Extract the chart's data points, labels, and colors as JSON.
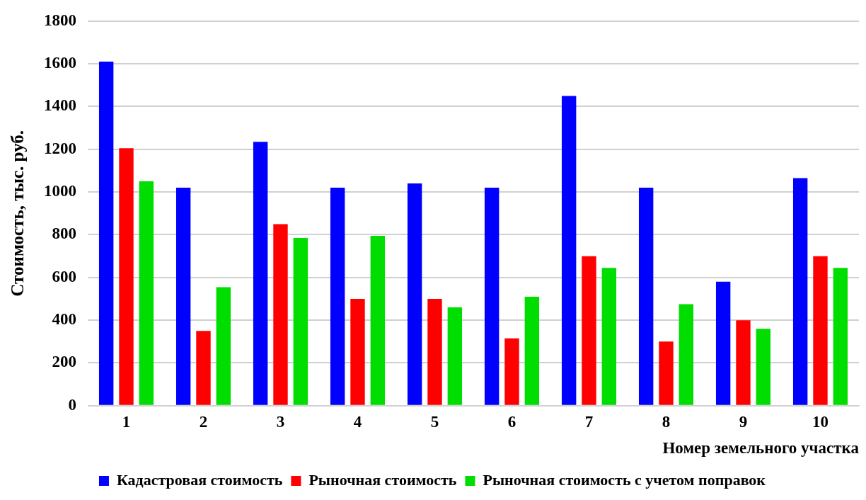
{
  "chart_data": {
    "type": "bar",
    "xlabel": "Номер земельного участка",
    "ylabel": "Стоимость, тыс. руб.",
    "categories": [
      "1",
      "2",
      "3",
      "4",
      "5",
      "6",
      "7",
      "8",
      "9",
      "10"
    ],
    "series": [
      {
        "name": "Кадастровая стоимость",
        "color": "#0000ff",
        "values": [
          1610,
          1020,
          1235,
          1020,
          1040,
          1020,
          1450,
          1020,
          580,
          1065
        ]
      },
      {
        "name": "Рыночная стоимость",
        "color": "#ff0000",
        "values": [
          1205,
          350,
          850,
          500,
          500,
          315,
          700,
          300,
          400,
          700
        ]
      },
      {
        "name": "Рыночная стоимость с учетом поправок",
        "color": "#00dd00",
        "values": [
          1050,
          555,
          785,
          795,
          460,
          510,
          645,
          475,
          360,
          645
        ]
      }
    ],
    "ylim": [
      0,
      1800
    ],
    "yticks": [
      0,
      200,
      400,
      600,
      800,
      1000,
      1200,
      1400,
      1600,
      1800
    ],
    "grid": "y",
    "legend": "bottom"
  }
}
